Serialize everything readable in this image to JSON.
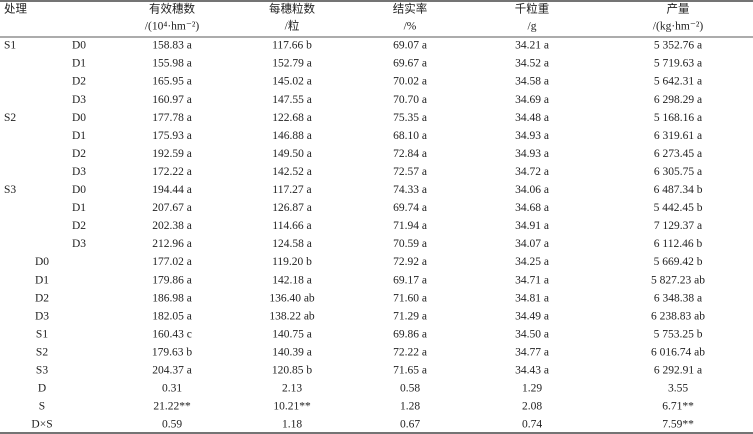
{
  "header": {
    "treatment": "处理",
    "columns": [
      {
        "title": "有效穗数",
        "unit": "/(10⁴·hm⁻²)"
      },
      {
        "title": "每穗粒数",
        "unit": "/粒"
      },
      {
        "title": "结实率",
        "unit": "/%"
      },
      {
        "title": "千粒重",
        "unit": "/g"
      },
      {
        "title": "产量",
        "unit": "/(kg·hm⁻²)"
      }
    ]
  },
  "interactions": [
    {
      "group": "S1",
      "label": "D0",
      "cells": [
        "158.83 a",
        "117.66 b",
        "69.07 a",
        "34.21 a",
        "5 352.76 a"
      ]
    },
    {
      "label": "D1",
      "cells": [
        "155.98 a",
        "152.79 a",
        "69.67 a",
        "34.52 a",
        "5 719.63 a"
      ]
    },
    {
      "label": "D2",
      "cells": [
        "165.95 a",
        "145.02 a",
        "70.02 a",
        "34.58 a",
        "5 642.31 a"
      ]
    },
    {
      "label": "D3",
      "cells": [
        "160.97 a",
        "147.55 a",
        "70.70 a",
        "34.69 a",
        "6 298.29 a"
      ]
    },
    {
      "group": "S2",
      "label": "D0",
      "cells": [
        "177.78 a",
        "122.68 a",
        "75.35 a",
        "34.48 a",
        "5 168.16 a"
      ]
    },
    {
      "label": "D1",
      "cells": [
        "175.93 a",
        "146.88 a",
        "68.10 a",
        "34.93 a",
        "6 319.61 a"
      ]
    },
    {
      "label": "D2",
      "cells": [
        "192.59 a",
        "149.50 a",
        "72.84 a",
        "34.93 a",
        "6 273.45 a"
      ]
    },
    {
      "label": "D3",
      "cells": [
        "172.22 a",
        "142.52 a",
        "72.57 a",
        "34.72 a",
        "6 305.75 a"
      ]
    },
    {
      "group": "S3",
      "label": "D0",
      "cells": [
        "194.44 a",
        "117.27 a",
        "74.33 a",
        "34.06 a",
        "6 487.34 b"
      ]
    },
    {
      "label": "D1",
      "cells": [
        "207.67 a",
        "126.87 a",
        "69.74 a",
        "34.68 a",
        "5 442.45 b"
      ]
    },
    {
      "label": "D2",
      "cells": [
        "202.38 a",
        "114.66 a",
        "71.94 a",
        "34.91 a",
        "7 129.37 a"
      ]
    },
    {
      "label": "D3",
      "cells": [
        "212.96 a",
        "124.58 a",
        "70.59 a",
        "34.07 a",
        "6 112.46 b"
      ]
    }
  ],
  "main_effects": [
    {
      "label": "D0",
      "cells": [
        "177.02 a",
        "119.20 b",
        "72.92 a",
        "34.25 a",
        "5 669.42 b"
      ]
    },
    {
      "label": "D1",
      "cells": [
        "179.86 a",
        "142.18 a",
        "69.17 a",
        "34.71 a",
        "5 827.23 ab"
      ]
    },
    {
      "label": "D2",
      "cells": [
        "186.98 a",
        "136.40 ab",
        "71.60 a",
        "34.81 a",
        "6 348.38 a"
      ]
    },
    {
      "label": "D3",
      "cells": [
        "182.05 a",
        "138.22 ab",
        "71.29 a",
        "34.49 a",
        "6 238.83 ab"
      ]
    },
    {
      "label": "S1",
      "cells": [
        "160.43 c",
        "140.75 a",
        "69.86 a",
        "34.50 a",
        "5 753.25 b"
      ]
    },
    {
      "label": "S2",
      "cells": [
        "179.63 b",
        "140.39 a",
        "72.22 a",
        "34.77 a",
        "6 016.74 ab"
      ]
    },
    {
      "label": "S3",
      "cells": [
        "204.37 a",
        "120.85 b",
        "71.65 a",
        "34.43 a",
        "6 292.91 a"
      ]
    }
  ],
  "anova": [
    {
      "label": "D",
      "cells": [
        "0.31",
        "2.13",
        "0.58",
        "1.29",
        "3.55"
      ]
    },
    {
      "label": "S",
      "cells": [
        "21.22**",
        "10.21**",
        "1.28",
        "2.08",
        "6.71**"
      ]
    },
    {
      "label": "D×S",
      "cells": [
        "0.59",
        "1.18",
        "0.67",
        "0.74",
        "7.59**"
      ]
    }
  ]
}
